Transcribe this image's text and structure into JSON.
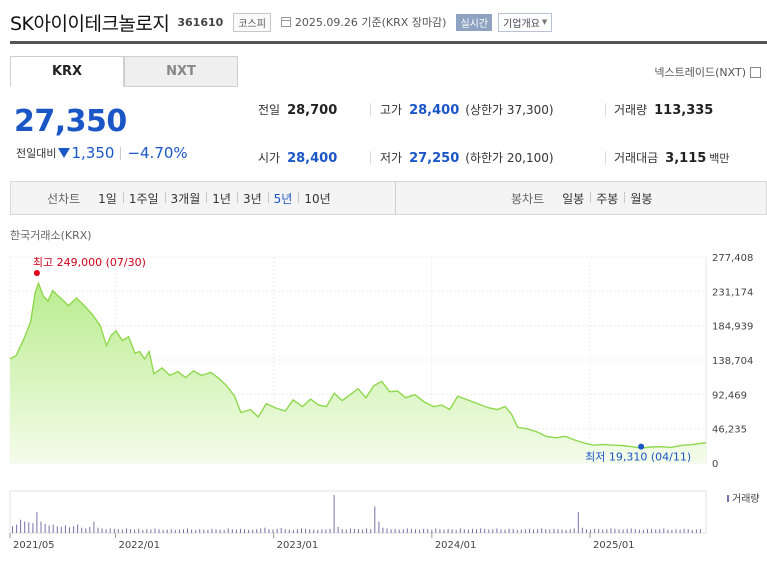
{
  "header": {
    "company_name": "SK아이이테크놀로지",
    "stock_code": "361610",
    "market": "코스피",
    "date_text": "2025.09.26 기준(KRX 장마감)",
    "realtime_label": "실시간",
    "overview_label": "기업개요"
  },
  "tabs": [
    {
      "label": "KRX",
      "active": true
    },
    {
      "label": "NXT",
      "active": false
    }
  ],
  "nxt_checkbox_label": "넥스트레이드(NXT)",
  "quote": {
    "price": "27,350",
    "change_label": "전일대비",
    "change_amount": "1,350",
    "change_percent": "−4.70%",
    "direction": "down"
  },
  "stats": {
    "prev_close": {
      "label": "전일",
      "value": "28,700"
    },
    "high": {
      "label": "고가",
      "value": "28,400",
      "limit_label": "상한가",
      "limit_value": "37,300"
    },
    "volume": {
      "label": "거래량",
      "value": "113,335"
    },
    "open": {
      "label": "시가",
      "value": "28,400"
    },
    "low": {
      "label": "저가",
      "value": "27,250",
      "limit_label": "하한가",
      "limit_value": "20,100"
    },
    "trade_value": {
      "label": "거래대금",
      "value": "3,115",
      "unit": "백만"
    }
  },
  "toolbar": {
    "line_chart_label": "선차트",
    "ranges": [
      "1일",
      "1주일",
      "3개월",
      "1년",
      "3년",
      "5년",
      "10년"
    ],
    "active_range": "5년",
    "candle_chart_label": "봉차트",
    "candle_ranges": [
      "일봉",
      "주봉",
      "월봉"
    ]
  },
  "source_label": "한국거래소(KRX)",
  "chart_data": {
    "type": "area",
    "y_ticks": [
      "277,408",
      "231,174",
      "184,939",
      "138,704",
      "92,469",
      "46,235",
      "0"
    ],
    "ylim": [
      0,
      277408
    ],
    "x_ticks": [
      {
        "label": "2021/05",
        "t": 0.0
      },
      {
        "label": "2022/01",
        "t": 0.6667
      },
      {
        "label": "2023/01",
        "t": 1.6667
      },
      {
        "label": "2024/01",
        "t": 2.6667
      },
      {
        "label": "2025/01",
        "t": 3.6667
      }
    ],
    "series": [
      {
        "points": [
          [
            0.0,
            140000
          ],
          [
            0.04,
            145000
          ],
          [
            0.09,
            168000
          ],
          [
            0.13,
            190000
          ],
          [
            0.16,
            230000
          ],
          [
            0.18,
            242000
          ],
          [
            0.21,
            225000
          ],
          [
            0.24,
            218000
          ],
          [
            0.27,
            232000
          ],
          [
            0.32,
            222000
          ],
          [
            0.37,
            212000
          ],
          [
            0.42,
            222000
          ],
          [
            0.47,
            212000
          ],
          [
            0.52,
            200000
          ],
          [
            0.57,
            185000
          ],
          [
            0.61,
            158000
          ],
          [
            0.64,
            172000
          ],
          [
            0.67,
            178000
          ],
          [
            0.71,
            165000
          ],
          [
            0.75,
            170000
          ],
          [
            0.79,
            148000
          ],
          [
            0.82,
            150000
          ],
          [
            0.85,
            140000
          ],
          [
            0.88,
            150000
          ],
          [
            0.91,
            120000
          ],
          [
            0.96,
            128000
          ],
          [
            1.01,
            118000
          ],
          [
            1.06,
            123000
          ],
          [
            1.11,
            115000
          ],
          [
            1.16,
            124000
          ],
          [
            1.21,
            118000
          ],
          [
            1.27,
            122000
          ],
          [
            1.32,
            114000
          ],
          [
            1.37,
            104000
          ],
          [
            1.42,
            90000
          ],
          [
            1.46,
            68000
          ],
          [
            1.52,
            72000
          ],
          [
            1.57,
            62000
          ],
          [
            1.62,
            80000
          ],
          [
            1.68,
            74000
          ],
          [
            1.74,
            70000
          ],
          [
            1.79,
            85000
          ],
          [
            1.85,
            76000
          ],
          [
            1.9,
            86000
          ],
          [
            1.95,
            78000
          ],
          [
            2.0,
            76000
          ],
          [
            2.05,
            94000
          ],
          [
            2.1,
            84000
          ],
          [
            2.15,
            92000
          ],
          [
            2.2,
            100000
          ],
          [
            2.25,
            88000
          ],
          [
            2.3,
            104000
          ],
          [
            2.35,
            110000
          ],
          [
            2.4,
            96000
          ],
          [
            2.45,
            97000
          ],
          [
            2.5,
            88000
          ],
          [
            2.56,
            92000
          ],
          [
            2.62,
            82000
          ],
          [
            2.68,
            76000
          ],
          [
            2.73,
            78000
          ],
          [
            2.78,
            72000
          ],
          [
            2.83,
            90000
          ],
          [
            2.88,
            86000
          ],
          [
            2.93,
            82000
          ],
          [
            2.98,
            78000
          ],
          [
            3.03,
            74000
          ],
          [
            3.08,
            72000
          ],
          [
            3.13,
            76000
          ],
          [
            3.17,
            66000
          ],
          [
            3.21,
            48000
          ],
          [
            3.27,
            46000
          ],
          [
            3.33,
            42000
          ],
          [
            3.39,
            36000
          ],
          [
            3.45,
            34000
          ],
          [
            3.51,
            36000
          ],
          [
            3.57,
            31000
          ],
          [
            3.63,
            27000
          ],
          [
            3.69,
            24000
          ],
          [
            3.75,
            25000
          ],
          [
            3.81,
            24000
          ],
          [
            3.87,
            23500
          ],
          [
            3.93,
            22000
          ],
          [
            3.99,
            20000
          ],
          [
            4.05,
            21500
          ],
          [
            4.12,
            22000
          ],
          [
            4.18,
            21000
          ],
          [
            4.25,
            24000
          ],
          [
            4.3,
            24500
          ],
          [
            4.35,
            26000
          ],
          [
            4.4,
            27350
          ]
        ]
      }
    ],
    "annotations": {
      "high": {
        "text": "최고 249,000 (07/30)",
        "x": 0.17,
        "value": 249000
      },
      "low": {
        "text": "최저 19,310 (04/11)",
        "x": 3.99,
        "value": 19310
      }
    },
    "volume_legend": "거래량",
    "volume": [
      0.18,
      0.22,
      0.35,
      0.3,
      0.28,
      0.26,
      0.55,
      0.3,
      0.24,
      0.2,
      0.22,
      0.18,
      0.16,
      0.2,
      0.15,
      0.18,
      0.22,
      0.14,
      0.12,
      0.16,
      0.3,
      0.14,
      0.12,
      0.1,
      0.12,
      0.11,
      0.1,
      0.09,
      0.12,
      0.1,
      0.09,
      0.11,
      0.08,
      0.1,
      0.09,
      0.12,
      0.1,
      0.08,
      0.09,
      0.1,
      0.08,
      0.09,
      0.1,
      0.12,
      0.09,
      0.08,
      0.1,
      0.09,
      0.08,
      0.11,
      0.1,
      0.09,
      0.08,
      0.12,
      0.1,
      0.09,
      0.11,
      0.1,
      0.08,
      0.09,
      0.1,
      0.12,
      0.14,
      0.1,
      0.09,
      0.11,
      0.13,
      0.1,
      0.09,
      0.08,
      0.1,
      0.12,
      0.11,
      0.1,
      0.09,
      0.08,
      0.1,
      0.09,
      0.11,
      1.0,
      0.16,
      0.1,
      0.09,
      0.12,
      0.11,
      0.1,
      0.09,
      0.12,
      0.1,
      0.7,
      0.3,
      0.14,
      0.12,
      0.1,
      0.11,
      0.09,
      0.1,
      0.12,
      0.11,
      0.1,
      0.09,
      0.11,
      0.1,
      0.09,
      0.12,
      0.1,
      0.09,
      0.11,
      0.1,
      0.08,
      0.12,
      0.1,
      0.09,
      0.11,
      0.1,
      0.12,
      0.11,
      0.09,
      0.1,
      0.12,
      0.1,
      0.09,
      0.11,
      0.1,
      0.08,
      0.09,
      0.1,
      0.11,
      0.09,
      0.1,
      0.12,
      0.1,
      0.09,
      0.11,
      0.1,
      0.09,
      0.08,
      0.1,
      0.12,
      0.55,
      0.14,
      0.1,
      0.09,
      0.11,
      0.1,
      0.09,
      0.1,
      0.12,
      0.11,
      0.1,
      0.09,
      0.11,
      0.12,
      0.1,
      0.09,
      0.08,
      0.1,
      0.11,
      0.09,
      0.1,
      0.12,
      0.09,
      0.08,
      0.1,
      0.09,
      0.11,
      0.1,
      0.08,
      0.09,
      0.1
    ]
  }
}
